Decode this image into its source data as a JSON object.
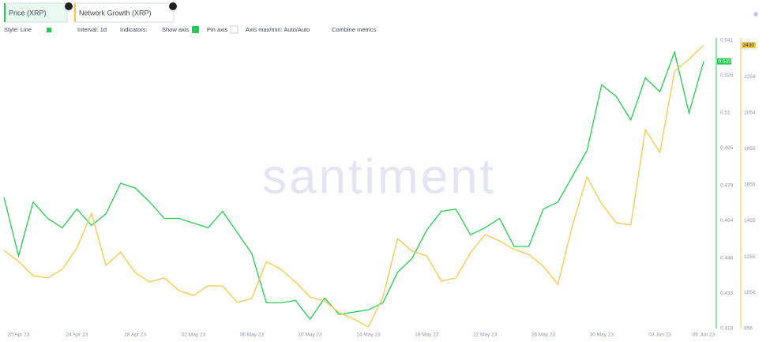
{
  "chart_data": {
    "type": "line",
    "watermark": "santiment",
    "categories": [
      null,
      "20 Apr 23",
      null,
      null,
      null,
      "24 Apr 23",
      null,
      null,
      null,
      "28 Apr 23",
      null,
      null,
      null,
      "02 May 23",
      null,
      null,
      null,
      "06 May 23",
      null,
      null,
      null,
      "10 May 23",
      null,
      null,
      null,
      "14 May 23",
      null,
      null,
      null,
      "18 May 23",
      null,
      null,
      null,
      "22 May 23",
      null,
      null,
      null,
      "26 May 23",
      null,
      null,
      null,
      "30 May 23",
      null,
      null,
      null,
      "03 Jun 23",
      null,
      null,
      "06 Jun 23"
    ],
    "series": [
      {
        "name": "Price (XRP)",
        "color": "#26c953",
        "axis": "y",
        "values": [
          0.474,
          0.449,
          0.472,
          0.465,
          0.461,
          0.469,
          0.462,
          0.467,
          0.48,
          0.478,
          0.472,
          0.465,
          0.465,
          0.463,
          0.461,
          0.468,
          0.459,
          0.45,
          0.429,
          0.429,
          0.43,
          0.422,
          0.431,
          0.424,
          0.425,
          0.426,
          0.429,
          0.442,
          0.448,
          0.46,
          0.468,
          0.469,
          0.458,
          0.461,
          0.465,
          0.453,
          0.453,
          0.469,
          0.472,
          0.483,
          0.494,
          0.522,
          0.517,
          0.507,
          0.525,
          0.519,
          0.536,
          0.51,
          0.532
        ]
      },
      {
        "name": "Network Growth (XRP)",
        "color": "#f2c94c",
        "axis": "y2",
        "values": [
          1290,
          1229,
          1150,
          1137,
          1185,
          1303,
          1496,
          1207,
          1281,
          1167,
          1115,
          1137,
          1067,
          1040,
          1093,
          1093,
          1001,
          1023,
          1229,
          1185,
          1115,
          1031,
          1010,
          944,
          909,
          865,
          1031,
          1356,
          1286,
          1260,
          1119,
          1137,
          1277,
          1378,
          1343,
          1295,
          1268,
          1202,
          1102,
          1431,
          1698,
          1549,
          1444,
          1431,
          1961,
          1834,
          2286,
          2352,
          2430
        ]
      }
    ],
    "ylim": [
      0.418,
      0.541
    ],
    "yticks": [
      0.418,
      0.433,
      0.448,
      0.464,
      0.479,
      0.495,
      0.51,
      0.526,
      0.541
    ],
    "y2lim": [
      856,
      2457
    ],
    "y2ticks": [
      856,
      1056,
      1255,
      1455,
      1655,
      1855,
      2054,
      2254
    ],
    "grid": false
  },
  "toolbar": [
    "Style: Line",
    "Interval: 1d",
    "Indicators:",
    "Show axis",
    "Pin axis",
    "Axis max/min: Auto/Auto",
    "Combine metrics"
  ]
}
